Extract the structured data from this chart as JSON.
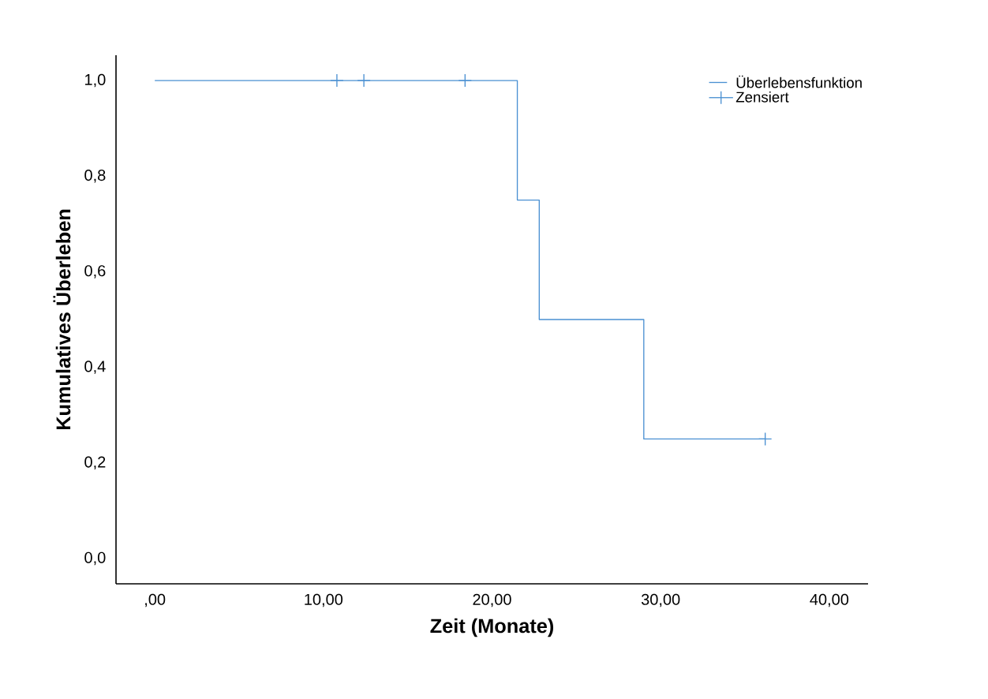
{
  "chart_data": {
    "type": "step",
    "xlabel": "Zeit (Monate)",
    "ylabel": "Kumulatives Überleben",
    "xlim": [
      -2.3,
      42.3
    ],
    "ylim": [
      -0.053,
      1.053
    ],
    "xticks": [
      {
        "value": 0,
        "label": ",00"
      },
      {
        "value": 10,
        "label": "10,00"
      },
      {
        "value": 20,
        "label": "20,00"
      },
      {
        "value": 30,
        "label": "30,00"
      },
      {
        "value": 40,
        "label": "40,00"
      }
    ],
    "yticks": [
      {
        "value": 0,
        "label": "0,0"
      },
      {
        "value": 0.2,
        "label": "0,2"
      },
      {
        "value": 0.4,
        "label": "0,4"
      },
      {
        "value": 0.6,
        "label": "0,6"
      },
      {
        "value": 0.8,
        "label": "0,8"
      },
      {
        "value": 1.0,
        "label": "1,0"
      }
    ],
    "grid": false,
    "legend": "top right",
    "series": [
      {
        "name": "Überlebensfunktion",
        "color": "#4a90d2",
        "x": [
          0,
          21.5,
          22.8,
          29.0,
          36.2
        ],
        "values": [
          1.0,
          0.75,
          0.5,
          0.25,
          0.25
        ]
      },
      {
        "name": "Zensiert",
        "type": "scatter",
        "marker": "cross",
        "color": "#4a90d2",
        "x": [
          10.8,
          12.4,
          18.4,
          36.2
        ],
        "values": [
          1.0,
          1.0,
          1.0,
          0.25
        ]
      }
    ]
  }
}
